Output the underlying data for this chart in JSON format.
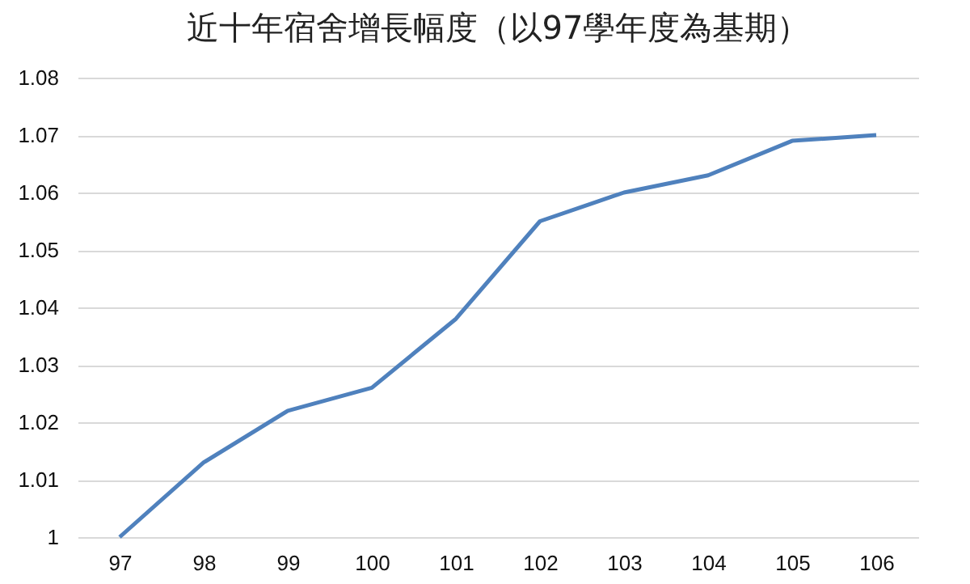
{
  "chart_data": {
    "type": "line",
    "title": "近十年宿舍增長幅度（以97學年度為基期）",
    "categories": [
      "97",
      "98",
      "99",
      "100",
      "101",
      "102",
      "103",
      "104",
      "105",
      "106"
    ],
    "series": [
      {
        "color": "#4f81bd",
        "values": [
          1.0,
          1.013,
          1.022,
          1.026,
          1.038,
          1.055,
          1.06,
          1.063,
          1.069,
          1.07
        ]
      }
    ],
    "ylim": [
      1,
      1.08
    ],
    "yticks": [
      1,
      1.01,
      1.02,
      1.03,
      1.04,
      1.05,
      1.06,
      1.07,
      1.08
    ],
    "grid": "y",
    "legend": false
  }
}
